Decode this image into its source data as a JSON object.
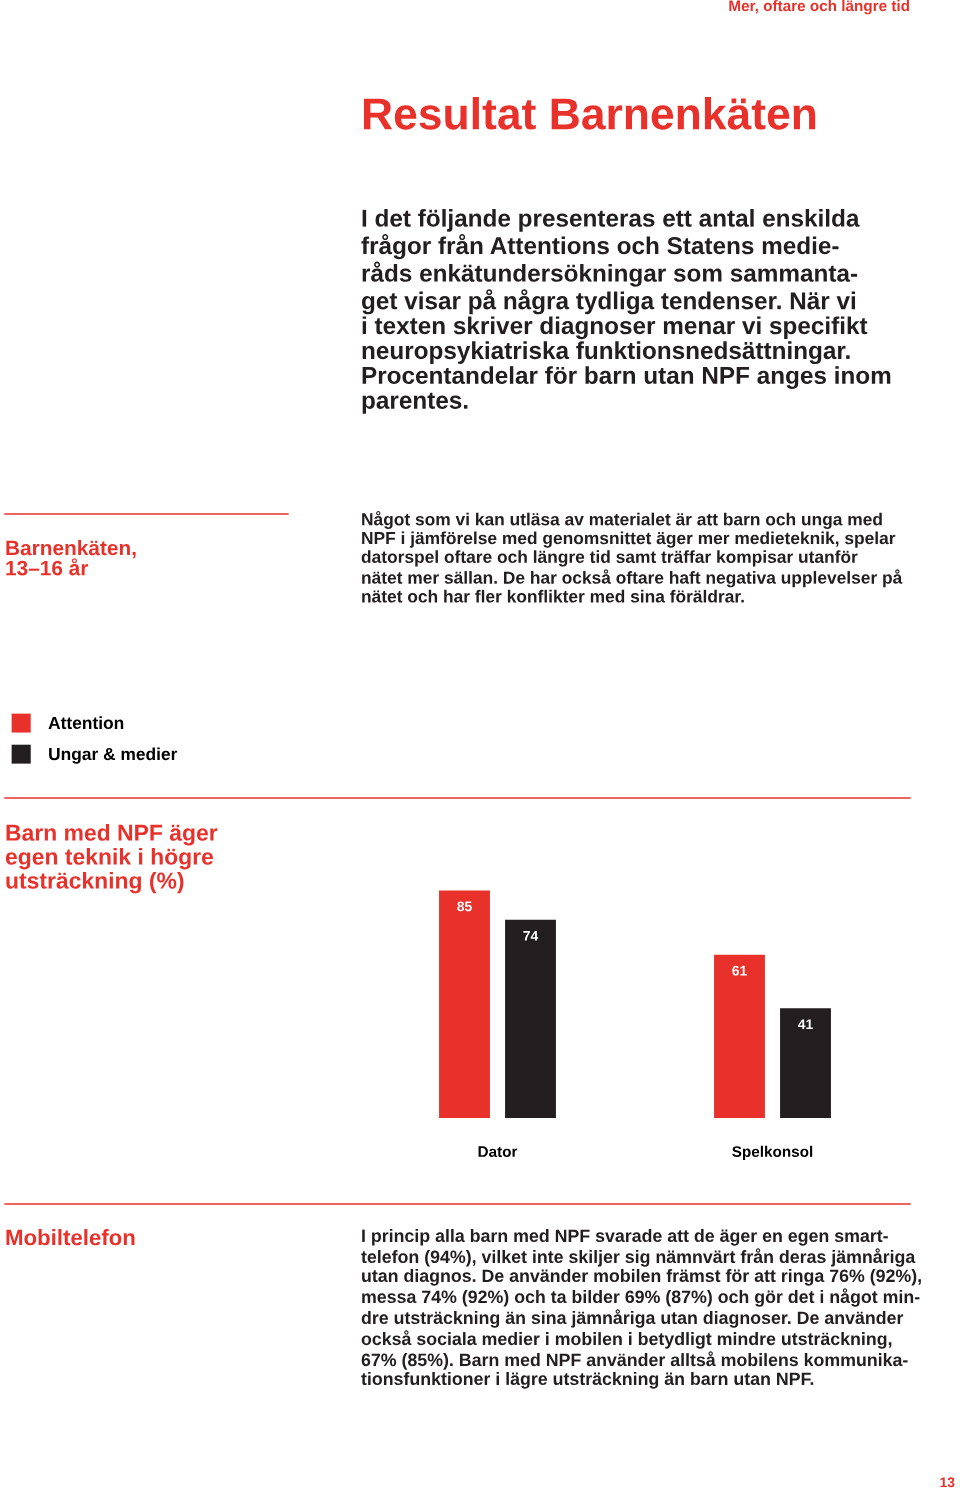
{
  "chart_data": {
    "type": "bar",
    "title": "Barn med NPF äger\negen teknik i högre\nutsträckning (%)",
    "categories": [
      "Dator",
      "Spelkonsol"
    ],
    "series": [
      {
        "name": "Attention",
        "color": "#e8312b",
        "values": [
          85,
          61
        ]
      },
      {
        "name": "Ungar & medier",
        "color": "#231f20",
        "values": [
          74,
          41
        ]
      }
    ],
    "data_labels": true,
    "legend": "top left",
    "annotations": [
      "Mer, oftare och längre tid",
      "Resultat Barnenkäten",
      "I det följande presenteras ett antal enskilda\nfrågor från Attentions och Statens medie-\nråds enkätundersökningar som sammanta-\nget visar på några tydliga tendenser. När vi\ni texten skriver diagnoser menar vi specifikt\nneuropsykiatriska funktionsnedsättningar.\nProcentandelar för barn utan NPF anges inom\nparentes.",
      "Barnenkäten,\n13–16 år",
      "Något som vi kan utläsa av materialet är att barn och unga med\nNPF i jämförelse med genomsnittet äger mer medieteknik, spelar\ndatorspel oftare och längre tid samt träffar kompisar utanför\nnätet mer sällan. De har också oftare haft negativa upplevelser på\nnätet och har fler konflikter med sina föräldrar.",
      "Mobiltelefon",
      "I princip alla barn med NPF svarade att de äger en egen smart-\ntelefon (94%), vilket inte skiljer sig nämnvärt från deras jämnåriga\nutan diagnos. De använder mobilen främst för att ringa 76% (92%),\nmessa 74% (92%) och ta bilder 69% (87%) och gör det i något min-\ndre utsträckning än sina jämnåriga utan diagnoser. De använder\nockså sociala medier i mobilen i betydligt mindre utsträckning,\n67% (85%). Barn med NPF använder alltså mobilens kommunika-\ntionsfunktioner i lägre utsträckning än barn utan NPF.",
      "13"
    ]
  }
}
